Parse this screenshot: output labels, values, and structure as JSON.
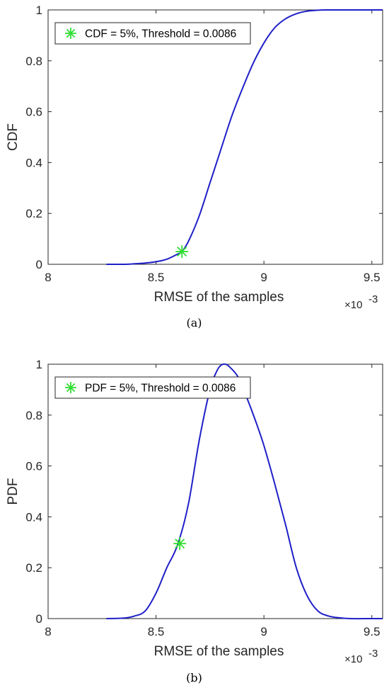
{
  "chart_data": [
    {
      "type": "line",
      "caption": "(a)",
      "xlabel": "RMSE of the samples",
      "ylabel": "CDF",
      "x_multiplier": "×10",
      "x_multiplier_exp": "-3",
      "xlim": [
        8.0,
        9.55
      ],
      "ylim": [
        0,
        1
      ],
      "xticks": [
        8,
        8.5,
        9,
        9.5
      ],
      "xtick_labels": [
        "8",
        "8.5",
        "9",
        "9.5"
      ],
      "yticks": [
        0,
        0.2,
        0.4,
        0.6,
        0.8,
        1
      ],
      "ytick_labels": [
        "0",
        "0.2",
        "0.4",
        "0.6",
        "0.8",
        "1"
      ],
      "grid": false,
      "legend_position": "top-left",
      "line_color": "#1f1fc8",
      "marker_color": "#33dd33",
      "series": [
        {
          "x": [
            8.27,
            8.35,
            8.4,
            8.45,
            8.5,
            8.55,
            8.6,
            8.62,
            8.65,
            8.7,
            8.75,
            8.8,
            8.85,
            8.9,
            8.95,
            9.0,
            9.05,
            9.1,
            9.15,
            9.2,
            9.25,
            9.3,
            9.35,
            9.4,
            9.45,
            9.5,
            9.55
          ],
          "y": [
            0.0,
            0.0,
            0.002,
            0.005,
            0.01,
            0.02,
            0.04,
            0.05,
            0.09,
            0.19,
            0.32,
            0.45,
            0.58,
            0.69,
            0.79,
            0.87,
            0.93,
            0.965,
            0.985,
            0.995,
            0.999,
            1.0,
            1.0,
            1.0,
            1.0,
            1.0,
            1.0
          ]
        }
      ],
      "marker": {
        "x": 8.62,
        "y": 0.05,
        "label": "CDF = 5%, Threshold = 0.0086"
      }
    },
    {
      "type": "line",
      "caption": "(b)",
      "xlabel": "RMSE of the samples",
      "ylabel": "PDF",
      "x_multiplier": "×10",
      "x_multiplier_exp": "-3",
      "xlim": [
        8.0,
        9.55
      ],
      "ylim": [
        0,
        1
      ],
      "xticks": [
        8,
        8.5,
        9,
        9.5
      ],
      "xtick_labels": [
        "8",
        "8.5",
        "9",
        "9.5"
      ],
      "yticks": [
        0,
        0.2,
        0.4,
        0.6,
        0.8,
        1
      ],
      "ytick_labels": [
        "0",
        "0.2",
        "0.4",
        "0.6",
        "0.8",
        "1"
      ],
      "grid": false,
      "legend_position": "top-left",
      "line_color": "#1f1fc8",
      "marker_color": "#33dd33",
      "series": [
        {
          "x": [
            8.27,
            8.35,
            8.4,
            8.45,
            8.5,
            8.55,
            8.6,
            8.65,
            8.7,
            8.75,
            8.78,
            8.8,
            8.82,
            8.84,
            8.88,
            8.92,
            8.96,
            9.0,
            9.05,
            9.1,
            9.15,
            9.2,
            9.25,
            9.3,
            9.35,
            9.4,
            9.5,
            9.55
          ],
          "y": [
            0.0,
            0.002,
            0.01,
            0.03,
            0.1,
            0.2,
            0.29,
            0.45,
            0.7,
            0.9,
            0.97,
            0.995,
            1.0,
            0.99,
            0.95,
            0.87,
            0.78,
            0.68,
            0.53,
            0.37,
            0.2,
            0.09,
            0.03,
            0.01,
            0.003,
            0.0,
            0.0,
            0.0
          ]
        }
      ],
      "marker": {
        "x": 8.61,
        "y": 0.295,
        "label": "PDF = 5%, Threshold = 0.0086"
      }
    }
  ]
}
